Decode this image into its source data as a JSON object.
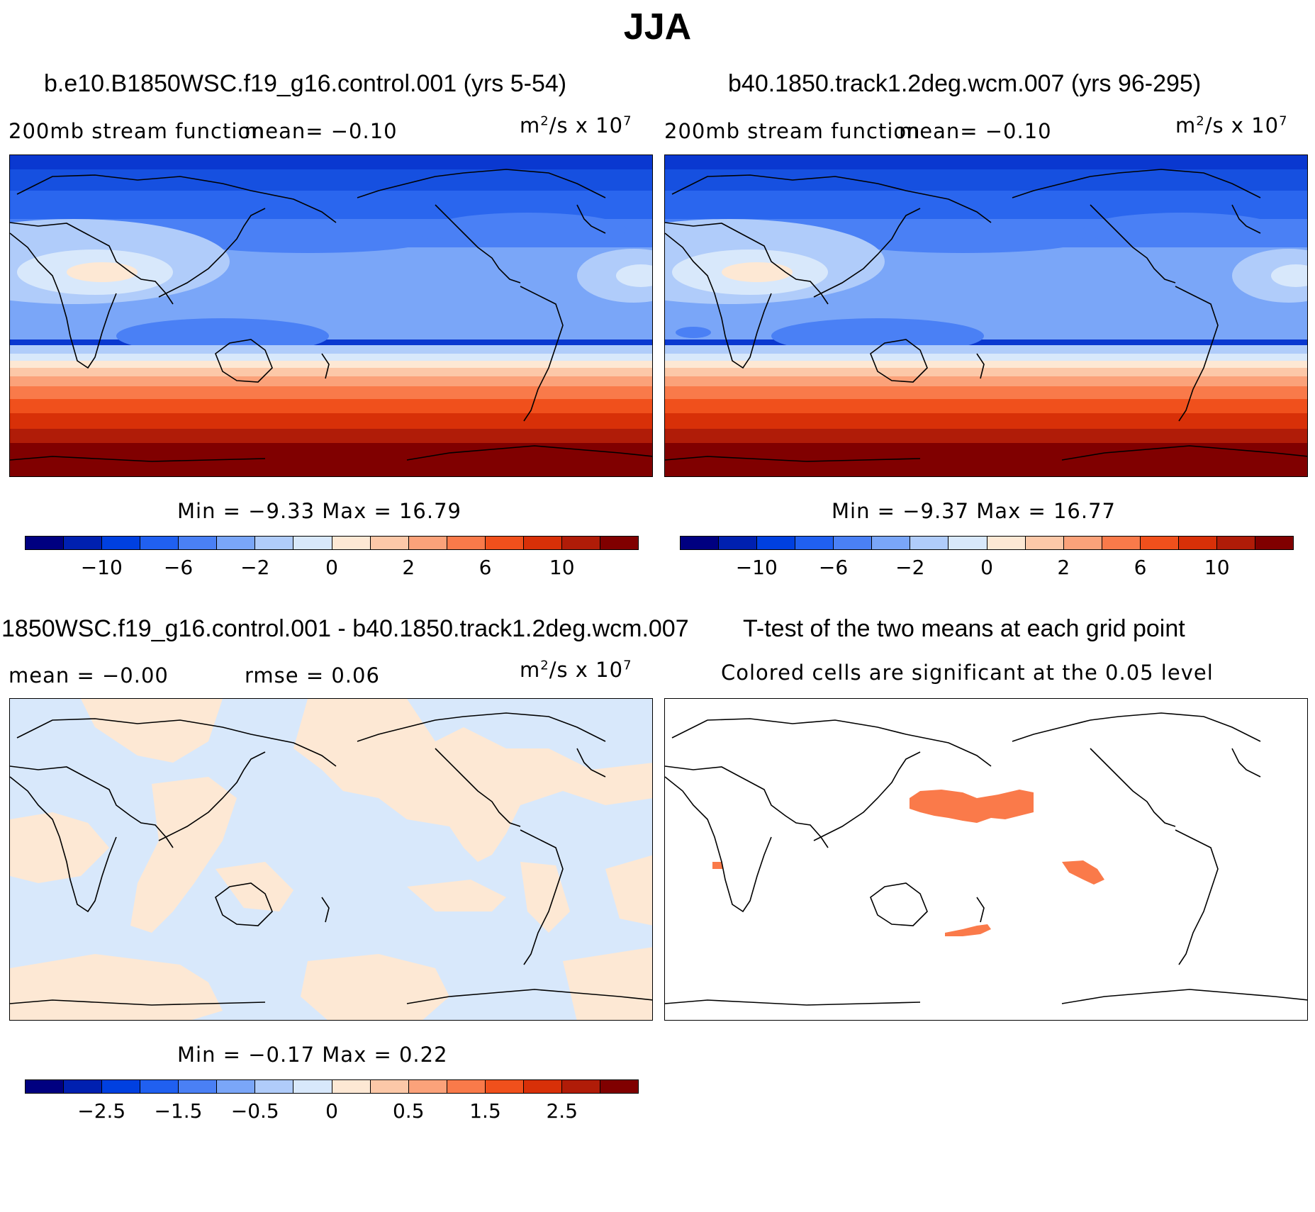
{
  "title": "JJA",
  "panels": {
    "top_left": {
      "title": "b.e10.B1850WSC.f19_g16.control.001 (yrs 5-54)",
      "label": "200mb stream function",
      "mean_text": "mean=   −0.10",
      "units_base": "m",
      "units_mid": "/s x 10",
      "units_exp1": "2",
      "units_exp2": "7",
      "minmax": "Min =   −9.33 Max =   16.79"
    },
    "top_right": {
      "title": "b40.1850.track1.2deg.wcm.007 (yrs 96-295)",
      "label": "200mb stream function",
      "mean_text": "mean=   −0.10",
      "units_base": "m",
      "units_mid": "/s x 10",
      "units_exp1": "2",
      "units_exp2": "7",
      "minmax": "Min =   −9.37 Max =   16.77"
    },
    "bottom_left": {
      "title": "1850WSC.f19_g16.control.001 - b40.1850.track1.2deg.wcm.007",
      "mean_text": "mean =   −0.00",
      "rmse_text": "rmse =    0.06",
      "units_base": "m",
      "units_mid": "/s x 10",
      "units_exp1": "2",
      "units_exp2": "7",
      "minmax": "Min =  −0.17 Max =    0.22"
    },
    "bottom_right": {
      "title": "T-test of the two means at each grid point",
      "subtitle": "Colored cells are significant at the 0.05 level"
    }
  },
  "colorbar_colors": [
    "#000080",
    "#0020b0",
    "#0040e0",
    "#2060f0",
    "#4a80f5",
    "#7aa6f8",
    "#b0ccfa",
    "#d8e8fb",
    "#fde8d4",
    "#fcc8a8",
    "#fba27a",
    "#f97a4a",
    "#f0501c",
    "#d83008",
    "#b01c08",
    "#800000"
  ],
  "colorbar_abs_ticks": [
    "−10",
    "−6",
    "−2",
    "0",
    "2",
    "6",
    "10"
  ],
  "colorbar_diff_ticks": [
    "−2.5",
    "−1.5",
    "−0.5",
    "0",
    "0.5",
    "1.5",
    "2.5"
  ],
  "significance_color": "#fa7a4a"
}
